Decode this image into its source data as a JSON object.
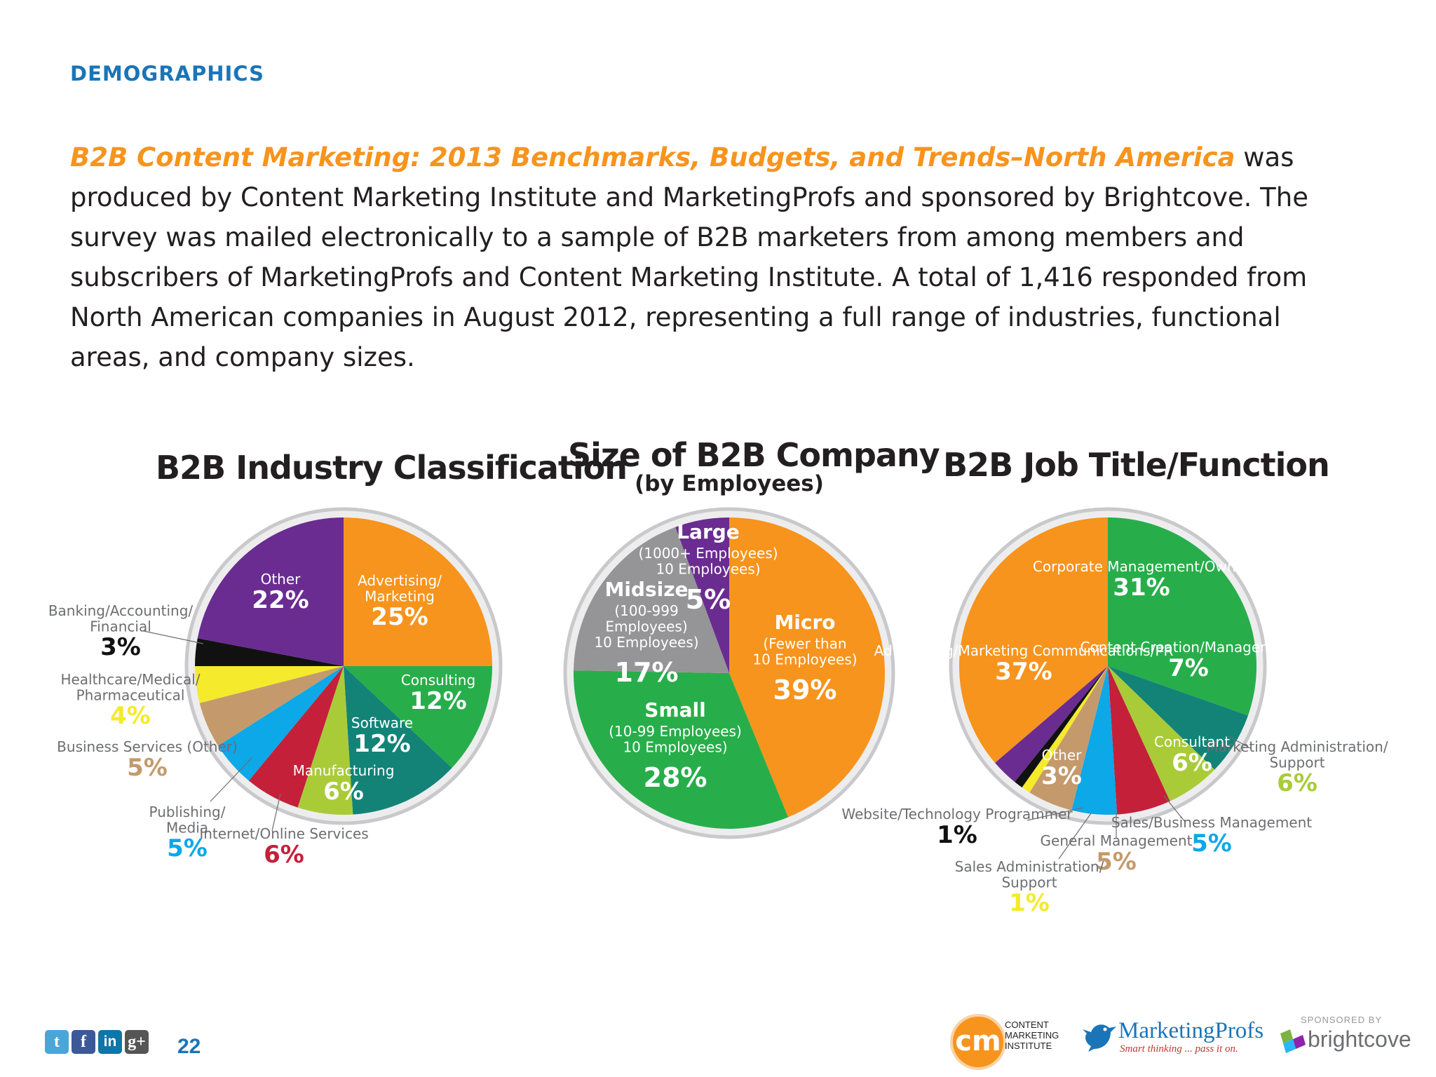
{
  "header": {
    "section_label": "DEMOGRAPHICS",
    "report_title": "B2B Content Marketing: 2013 Benchmarks, Budgets, and Trends–North America",
    "intro_text": " was produced by Content Marketing Institute and MarketingProfs and sponsored by Brightcove. The survey was mailed electronically to a sample of B2B marketers from among members and subscribers of MarketingProfs and Content Marketing Institute. A total of 1,416 responded from North American companies in August 2012, representing a full range of industries, functional areas, and company sizes."
  },
  "colors": {
    "accent_blue": "#1a75b8",
    "accent_orange": "#f7941d",
    "orange": "#f7941d",
    "green": "#27ae4a",
    "teal": "#138378",
    "lime": "#a9cb38",
    "red": "#c4203a",
    "sky": "#0ca8e8",
    "tan": "#c49a6c",
    "yellow": "#f5ea2c",
    "black": "#111111",
    "purple": "#6a2c91",
    "gray": "#959597"
  },
  "chart_data": [
    {
      "type": "pie",
      "title": "B2B Industry Classification",
      "slices": [
        {
          "label": "Advertising/ Marketing",
          "value": 25,
          "display": "25%",
          "color": "#f7941d"
        },
        {
          "label": "Consulting",
          "value": 12,
          "display": "12%",
          "color": "#27ae4a"
        },
        {
          "label": "Software",
          "value": 12,
          "display": "12%",
          "color": "#138378"
        },
        {
          "label": "Manufacturing",
          "value": 6,
          "display": "6%",
          "color": "#a9cb38"
        },
        {
          "label": "Internet/Online Services",
          "value": 6,
          "display": "6%",
          "color": "#c4203a"
        },
        {
          "label": "Publishing/ Media",
          "value": 5,
          "display": "5%",
          "color": "#0ca8e8"
        },
        {
          "label": "Business Services (Other)",
          "value": 5,
          "display": "5%",
          "color": "#c49a6c"
        },
        {
          "label": "Healthcare/Medical/ Pharmaceutical",
          "value": 4,
          "display": "4%",
          "color": "#f5ea2c"
        },
        {
          "label": "Banking/Accounting/ Financial",
          "value": 3,
          "display": "3%",
          "color": "#111111"
        },
        {
          "label": "Other",
          "value": 22,
          "display": "22%",
          "color": "#6a2c91"
        }
      ]
    },
    {
      "type": "pie",
      "title": "Size of B2B Company",
      "subtitle": "(by Employees)",
      "slices": [
        {
          "label": "Micro",
          "sublabel": "(Fewer than 10 Employees)",
          "value": 39,
          "display": "39%",
          "color": "#f7941d"
        },
        {
          "label": "Small",
          "sublabel": "(10-99 Employees)",
          "value": 28,
          "display": "28%",
          "color": "#27ae4a"
        },
        {
          "label": "Midsize",
          "sublabel": "(100-999 Employees)",
          "value": 17,
          "display": "17%",
          "color": "#959597"
        },
        {
          "label": "Large",
          "sublabel": "(1000+ Employees)",
          "value": 5,
          "display": "5%",
          "color": "#6a2c91"
        }
      ]
    },
    {
      "type": "pie",
      "title": "B2B Job Title/Function",
      "slices": [
        {
          "label": "Corporate Management/Owner",
          "value": 31,
          "display": "31%",
          "color": "#27ae4a"
        },
        {
          "label": "Content Creation/Management",
          "value": 7,
          "display": "7%",
          "color": "#138378"
        },
        {
          "label": "Marketing Administration/ Support",
          "value": 6,
          "display": "6%",
          "color": "#a9cb38"
        },
        {
          "label": "Consultant",
          "value": 6,
          "display": "6%",
          "color": "#c4203a"
        },
        {
          "label": "Sales/Business Management",
          "value": 5,
          "display": "5%",
          "color": "#0ca8e8"
        },
        {
          "label": "General Management",
          "value": 5,
          "display": "5%",
          "color": "#c49a6c"
        },
        {
          "label": "Sales Administration/ Support",
          "value": 1,
          "display": "1%",
          "color": "#f5ea2c"
        },
        {
          "label": "Website/Technology Programmer",
          "value": 1,
          "display": "1%",
          "color": "#111111"
        },
        {
          "label": "Other",
          "value": 3,
          "display": "3%",
          "color": "#6a2c91"
        },
        {
          "label": "Advertising/Marketing Communications/PR",
          "value": 37,
          "display": "37%",
          "color": "#f7941d"
        }
      ]
    }
  ],
  "footer": {
    "page_number": "22",
    "social_icons": [
      "twitter-icon",
      "facebook-icon",
      "linkedin-icon",
      "google-plus-icon"
    ],
    "cm_logo_text": "CONTENT MARKETING INSTITUTE",
    "cm_logo_mark": "cm",
    "mprofs_name": "MarketingProfs",
    "mprofs_tagline": "Smart thinking ... pass it on.",
    "sponsored_label": "SPONSORED BY",
    "sponsor_name": "brightcove"
  }
}
